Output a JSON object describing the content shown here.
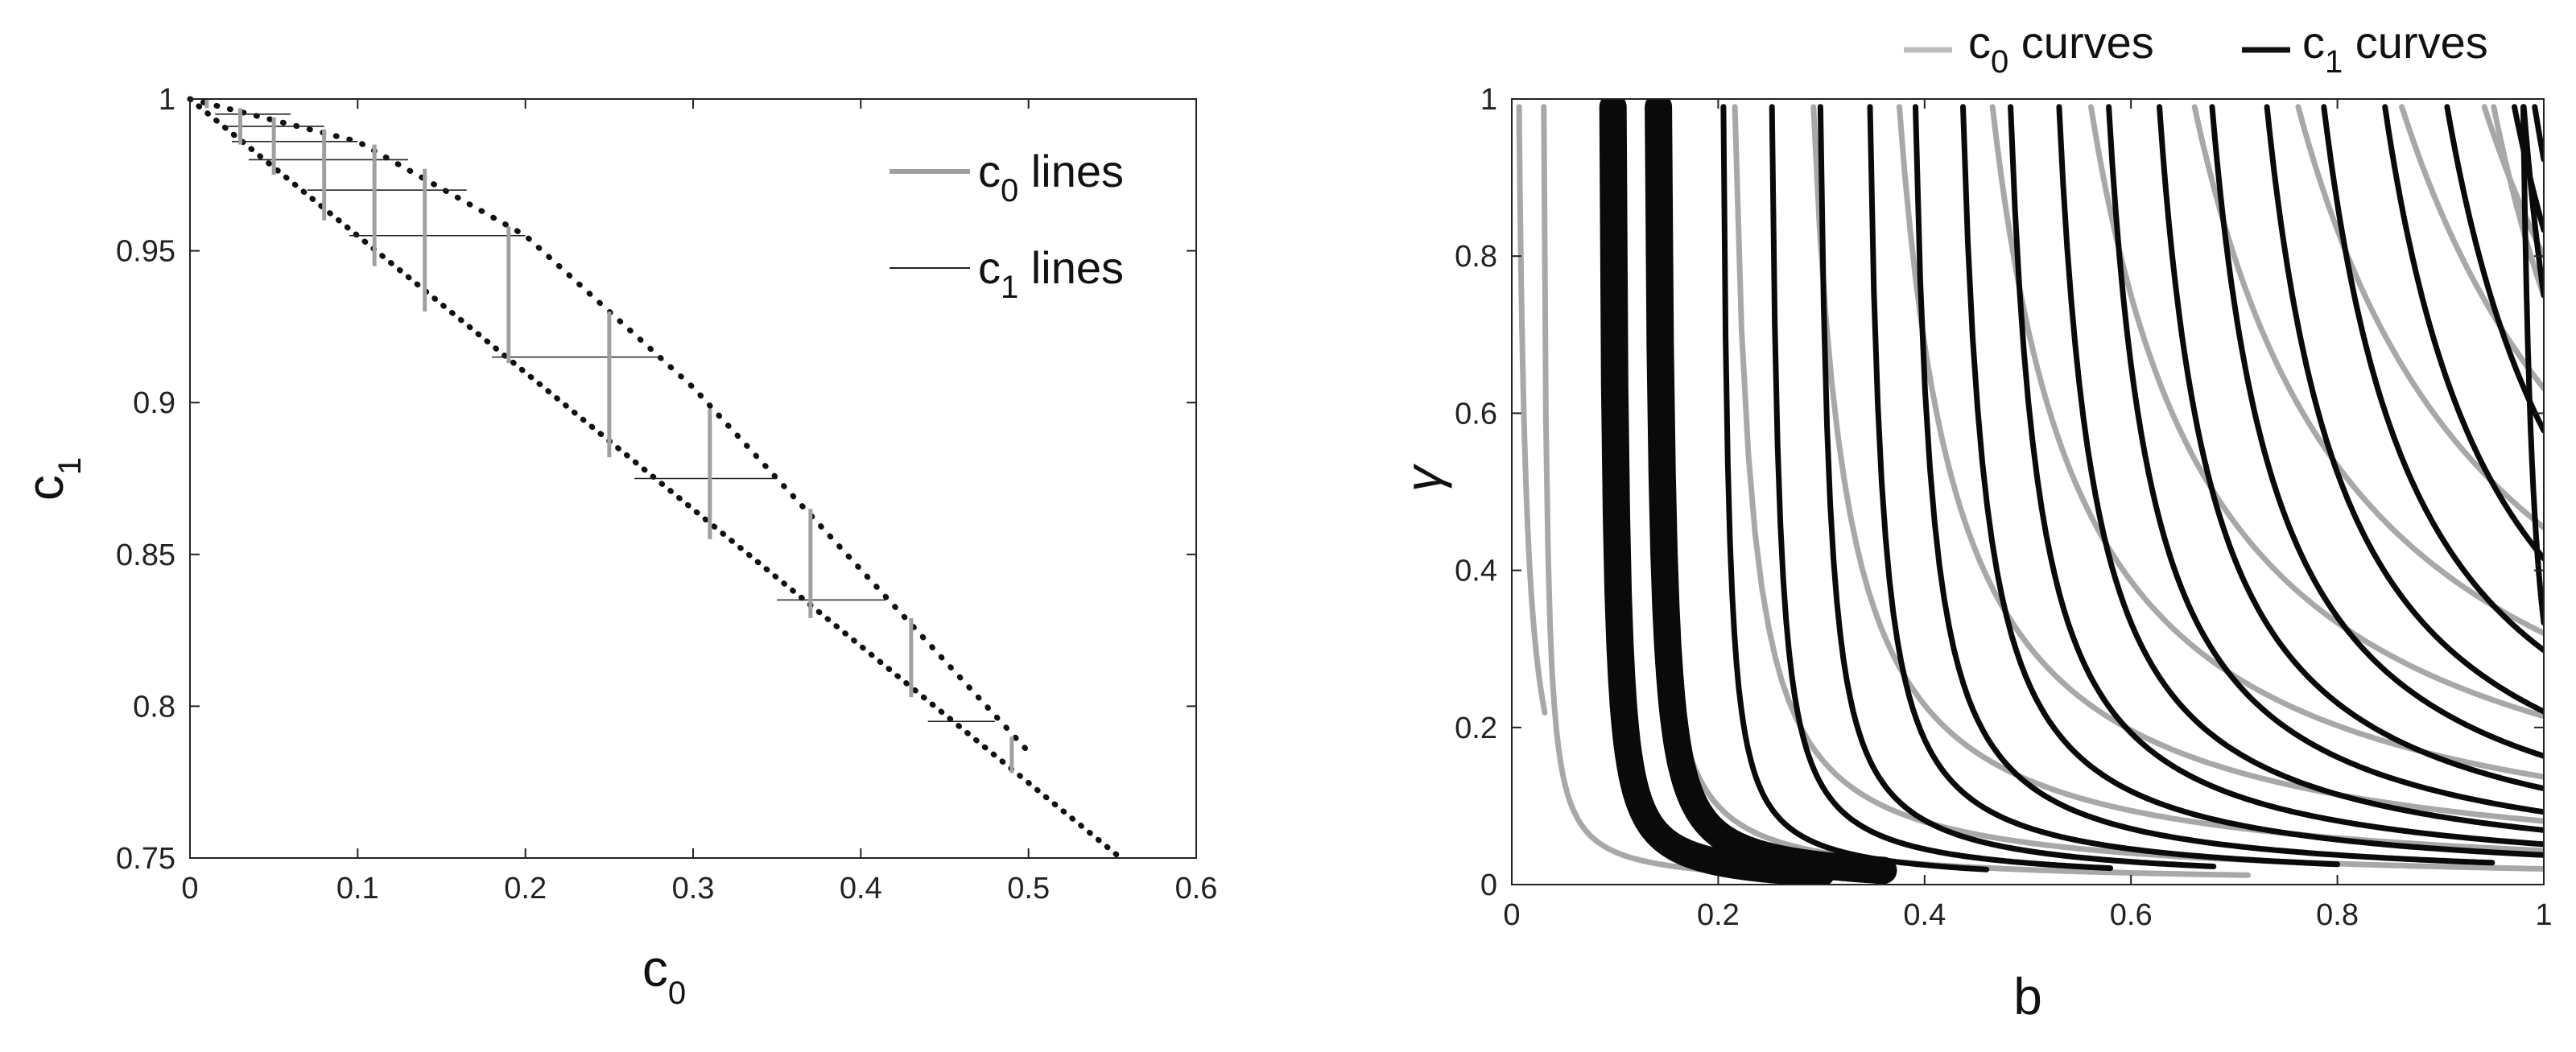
{
  "chart_data": [
    {
      "type": "line",
      "xlabel": "c",
      "xlabel_sub": "0",
      "ylabel": "c",
      "ylabel_sub": "1",
      "xlim": [
        0,
        0.6
      ],
      "ylim": [
        0.75,
        1.0
      ],
      "x_ticks": [
        "0",
        "0.1",
        "0.2",
        "0.3",
        "0.4",
        "0.5",
        "0.6"
      ],
      "y_ticks": [
        "0.75",
        "0.8",
        "0.85",
        "0.9",
        "0.95",
        "1"
      ],
      "grid": false,
      "legend_position": "top-right",
      "legend": [
        {
          "base": "c",
          "sub": "0",
          "rest": " lines",
          "color": "#a0a0a0"
        },
        {
          "base": "c",
          "sub": "1",
          "rest": " lines",
          "color": "#222222"
        }
      ],
      "series": [
        {
          "name": "c0 lines",
          "x": [
            0.01,
            0.03,
            0.05,
            0.08,
            0.11,
            0.14,
            0.19,
            0.25,
            0.31,
            0.37,
            0.43,
            0.49
          ],
          "y_low": [
            0.997,
            0.985,
            0.975,
            0.96,
            0.945,
            0.93,
            0.913,
            0.882,
            0.855,
            0.829,
            0.803,
            0.778
          ],
          "y_high": [
            1.0,
            0.997,
            0.994,
            0.99,
            0.985,
            0.977,
            0.958,
            0.93,
            0.898,
            0.865,
            0.829,
            0.79
          ]
        },
        {
          "name": "c1 lines",
          "y": [
            0.995,
            0.991,
            0.986,
            0.98,
            0.97,
            0.955,
            0.915,
            0.875,
            0.835,
            0.795
          ],
          "x_start": [
            0.015,
            0.02,
            0.025,
            0.035,
            0.07,
            0.095,
            0.18,
            0.265,
            0.35,
            0.44
          ],
          "x_end": [
            0.06,
            0.08,
            0.1,
            0.13,
            0.165,
            0.2,
            0.28,
            0.35,
            0.415,
            0.48
          ]
        }
      ],
      "boundary_lower": {
        "x": [
          0,
          0.555
        ],
        "y": [
          1.0,
          0.75
        ]
      },
      "boundary_upper": {
        "x": [
          0,
          0.1,
          0.2,
          0.3,
          0.4,
          0.5
        ],
        "y": [
          1.0,
          0.986,
          0.955,
          0.905,
          0.845,
          0.785
        ]
      }
    },
    {
      "type": "line",
      "xlabel": "b",
      "ylabel": "γ",
      "xlim": [
        0,
        1
      ],
      "ylim": [
        0,
        1
      ],
      "x_ticks": [
        "0",
        "0.2",
        "0.4",
        "0.6",
        "0.8",
        "1"
      ],
      "y_ticks": [
        "0",
        "0.2",
        "0.4",
        "0.6",
        "0.8",
        "1"
      ],
      "grid": false,
      "legend_position": "top",
      "legend": [
        {
          "base": "c",
          "sub": "0",
          "rest": " curves",
          "color": "#bdbdbd"
        },
        {
          "base": "c",
          "sub": "1",
          "rest": " curves",
          "color": "#111111"
        }
      ],
      "curve_family": "gamma = k / (b - b0), clipped to 0.01..0.99",
      "c0_curves": [
        {
          "b0": 0.0,
          "k": 0.007,
          "b_end": 0.032
        },
        {
          "b0": 0.028,
          "k": 0.003,
          "b_end": 0.55
        },
        {
          "b0": 0.13,
          "k": 0.007,
          "b_end": 0.85
        },
        {
          "b0": 0.2,
          "k": 0.016,
          "b_end": 1.0
        },
        {
          "b0": 0.26,
          "k": 0.032,
          "b_end": 1.0
        },
        {
          "b0": 0.32,
          "k": 0.055,
          "b_end": 1.0
        },
        {
          "b0": 0.38,
          "k": 0.085,
          "b_end": 1.0
        },
        {
          "b0": 0.44,
          "k": 0.12,
          "b_end": 1.0
        },
        {
          "b0": 0.5,
          "k": 0.16,
          "b_end": 1.0
        },
        {
          "b0": 0.56,
          "k": 0.2,
          "b_end": 1.0
        },
        {
          "b0": 0.62,
          "k": 0.24,
          "b_end": 1.0
        },
        {
          "b0": 0.7,
          "k": 0.24,
          "b_end": 1.0
        },
        {
          "b0": 0.8,
          "k": 0.15,
          "b_end": 1.0
        }
      ],
      "c1_curves": [
        {
          "b0": 0.095,
          "k": 0.003,
          "b_end": 0.3,
          "thick": true
        },
        {
          "b0": 0.138,
          "k": 0.004,
          "b_end": 0.36,
          "thick": true
        },
        {
          "b0": 0.2,
          "k": 0.005,
          "b_end": 0.46
        },
        {
          "b0": 0.245,
          "k": 0.007,
          "b_end": 0.58
        },
        {
          "b0": 0.29,
          "k": 0.009,
          "b_end": 0.68
        },
        {
          "b0": 0.335,
          "k": 0.012,
          "b_end": 0.8
        },
        {
          "b0": 0.375,
          "k": 0.016,
          "b_end": 0.95
        },
        {
          "b0": 0.415,
          "k": 0.022,
          "b_end": 1.0
        },
        {
          "b0": 0.455,
          "k": 0.028,
          "b_end": 1.0
        },
        {
          "b0": 0.495,
          "k": 0.035,
          "b_end": 1.0
        },
        {
          "b0": 0.535,
          "k": 0.043,
          "b_end": 1.0
        },
        {
          "b0": 0.575,
          "k": 0.052,
          "b_end": 1.0
        },
        {
          "b0": 0.615,
          "k": 0.063,
          "b_end": 1.0
        },
        {
          "b0": 0.655,
          "k": 0.076,
          "b_end": 1.0
        },
        {
          "b0": 0.695,
          "k": 0.091,
          "b_end": 1.0
        },
        {
          "b0": 0.735,
          "k": 0.11,
          "b_end": 1.0
        },
        {
          "b0": 0.775,
          "k": 0.13,
          "b_end": 1.0
        },
        {
          "b0": 0.82,
          "k": 0.15,
          "b_end": 1.0
        },
        {
          "b0": 0.87,
          "k": 0.12,
          "b_end": 1.0
        },
        {
          "b0": 0.92,
          "k": 0.06,
          "b_end": 1.0
        },
        {
          "b0": 0.97,
          "k": 0.01,
          "b_end": 1.0
        }
      ]
    }
  ]
}
